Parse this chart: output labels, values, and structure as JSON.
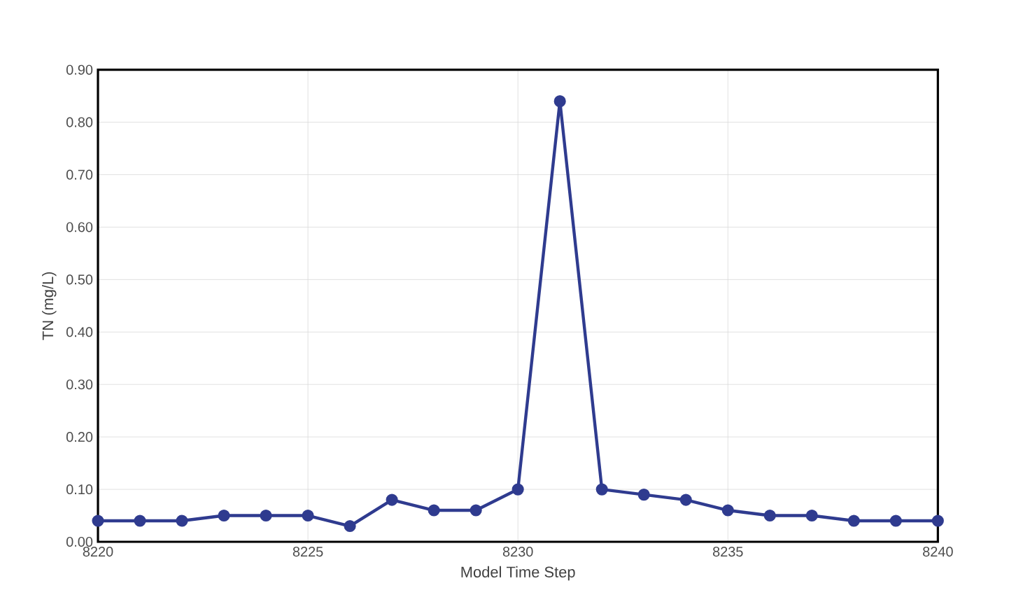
{
  "chart_data": {
    "type": "line",
    "xlabel": "Model Time Step",
    "ylabel": "TN (mg/L)",
    "x": [
      8220,
      8221,
      8222,
      8223,
      8224,
      8225,
      8226,
      8227,
      8228,
      8229,
      8230,
      8231,
      8232,
      8233,
      8234,
      8235,
      8236,
      8237,
      8238,
      8239,
      8240
    ],
    "series": [
      {
        "color": "#2f3b8f",
        "values": [
          0.04,
          0.04,
          0.04,
          0.05,
          0.05,
          0.05,
          0.03,
          0.08,
          0.06,
          0.06,
          0.1,
          0.84,
          0.1,
          0.09,
          0.08,
          0.06,
          0.05,
          0.05,
          0.04,
          0.04,
          0.04
        ]
      }
    ],
    "xlim": [
      8220,
      8240
    ],
    "xticks": [
      8220,
      8225,
      8230,
      8235,
      8240
    ],
    "ylim": [
      0,
      0.9
    ],
    "yticks": [
      {
        "value": 0,
        "label": "0.00"
      },
      {
        "value": 0.1,
        "label": "0.10"
      },
      {
        "value": 0.2,
        "label": "0.20"
      },
      {
        "value": 0.3,
        "label": "0.30"
      },
      {
        "value": 0.4,
        "label": "0.40"
      },
      {
        "value": 0.5,
        "label": "0.50"
      },
      {
        "value": 0.6,
        "label": "0.60"
      },
      {
        "value": 0.7,
        "label": "0.70"
      },
      {
        "value": 0.8,
        "label": "0.80"
      },
      {
        "value": 0.9,
        "label": "0.90"
      }
    ],
    "grid": true,
    "marker": "circle",
    "line_style": "solid"
  }
}
